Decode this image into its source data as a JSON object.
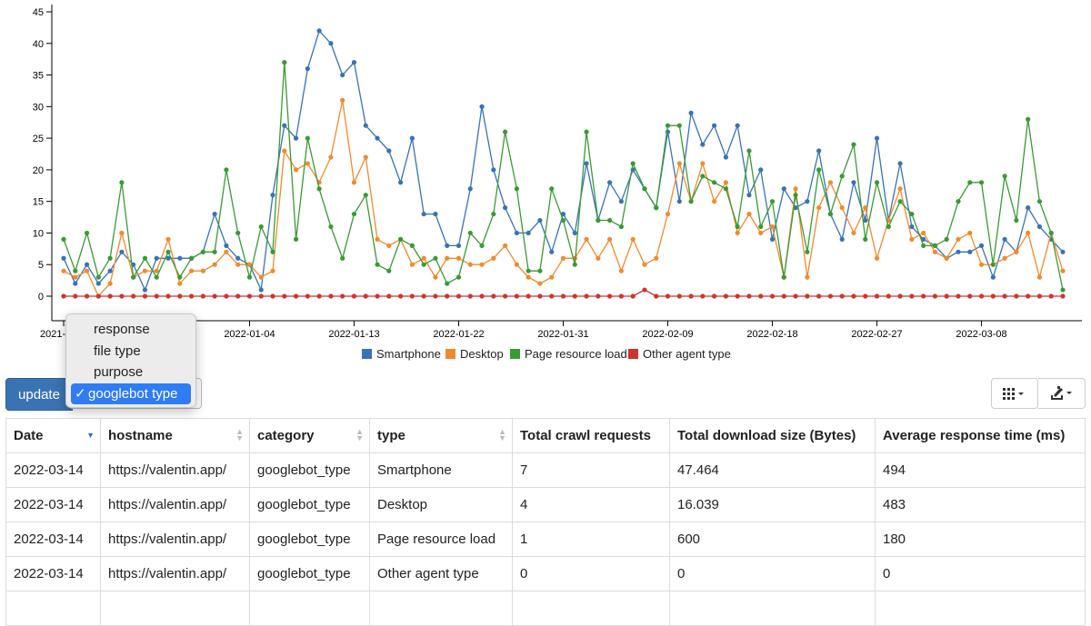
{
  "chart_data": {
    "type": "line",
    "ylim": [
      0,
      45
    ],
    "y_ticks": [
      0,
      5,
      10,
      15,
      20,
      25,
      30,
      35,
      40,
      45
    ],
    "x_tick_labels": [
      "2021-1",
      "2022-01-04",
      "2022-01-13",
      "2022-01-22",
      "2022-01-31",
      "2022-02-09",
      "2022-02-18",
      "2022-02-27",
      "2022-03-08"
    ],
    "legend_position": "bottom",
    "colors": {
      "Smartphone": "#3872b8",
      "Desktop": "#f28a2c",
      "Page resource load": "#3a9a35",
      "Other agent type": "#cf3330"
    },
    "series": [
      {
        "name": "Smartphone",
        "values": [
          6,
          2,
          5,
          2,
          4,
          7,
          5,
          1,
          6,
          6,
          6,
          6,
          7,
          13,
          8,
          6,
          5,
          1,
          16,
          27,
          25,
          36,
          42,
          40,
          35,
          37,
          27,
          25,
          23,
          18,
          25,
          13,
          13,
          8,
          8,
          17,
          30,
          20,
          14,
          10,
          10,
          12,
          7,
          13,
          10,
          21,
          12,
          18,
          15,
          20,
          17,
          14,
          26,
          15,
          29,
          24,
          27,
          22,
          27,
          16,
          20,
          9,
          17,
          14,
          15,
          23,
          13,
          9,
          18,
          12,
          25,
          12,
          21,
          11,
          9,
          8,
          6,
          7,
          7,
          8,
          3,
          9,
          7,
          14,
          11,
          9,
          7
        ]
      },
      {
        "name": "Desktop",
        "values": [
          4,
          3,
          4,
          0,
          2,
          10,
          3,
          4,
          4,
          9,
          2,
          4,
          4,
          5,
          7,
          5,
          5,
          3,
          4,
          23,
          20,
          21,
          18,
          22,
          31,
          18,
          22,
          9,
          8,
          9,
          5,
          6,
          3,
          6,
          6,
          5,
          5,
          6,
          8,
          5,
          3,
          2,
          3,
          6,
          6,
          9,
          6,
          9,
          4,
          9,
          5,
          6,
          13,
          21,
          15,
          21,
          15,
          18,
          10,
          13,
          10,
          11,
          3,
          17,
          3,
          14,
          18,
          14,
          10,
          14,
          6,
          12,
          17,
          9,
          10,
          7,
          6,
          9,
          10,
          5,
          5,
          6,
          7,
          10,
          3,
          10,
          4
        ]
      },
      {
        "name": "Page resource load",
        "values": [
          9,
          4,
          10,
          3,
          6,
          18,
          3,
          6,
          3,
          7,
          3,
          6,
          7,
          7,
          20,
          10,
          3,
          11,
          7,
          37,
          9,
          25,
          17,
          11,
          6,
          13,
          16,
          5,
          4,
          9,
          8,
          5,
          6,
          2,
          3,
          10,
          8,
          13,
          26,
          17,
          4,
          4,
          17,
          12,
          5,
          26,
          12,
          12,
          11,
          21,
          17,
          14,
          27,
          27,
          15,
          19,
          18,
          17,
          11,
          23,
          11,
          15,
          3,
          16,
          7,
          20,
          13,
          19,
          24,
          9,
          18,
          11,
          15,
          13,
          8,
          8,
          9,
          15,
          18,
          18,
          5,
          19,
          12,
          28,
          15,
          10,
          1
        ]
      },
      {
        "name": "Other agent type",
        "values": [
          0,
          0,
          0,
          0,
          0,
          0,
          0,
          0,
          0,
          0,
          0,
          0,
          0,
          0,
          0,
          0,
          0,
          0,
          0,
          0,
          0,
          0,
          0,
          0,
          0,
          0,
          0,
          0,
          0,
          0,
          0,
          0,
          0,
          0,
          0,
          0,
          0,
          0,
          0,
          0,
          0,
          0,
          0,
          0,
          0,
          0,
          0,
          0,
          0,
          0,
          1,
          0,
          0,
          0,
          0,
          0,
          0,
          0,
          0,
          0,
          0,
          0,
          0,
          0,
          0,
          0,
          0,
          0,
          0,
          0,
          0,
          0,
          0,
          0,
          0,
          0,
          0,
          0,
          0,
          0,
          0,
          0,
          0,
          0,
          0,
          0,
          0
        ]
      }
    ]
  },
  "toolbar": {
    "update_label": "update",
    "dropdown_options": [
      "response",
      "file type",
      "purpose",
      "googlebot type"
    ],
    "dropdown_selected": "googlebot type",
    "check_mark": "✓",
    "columns_icon": "columns-grid-icon",
    "export_icon": "export-icon"
  },
  "table": {
    "headers": [
      "Date",
      "hostname",
      "category",
      "type",
      "Total crawl requests",
      "Total download size (Bytes)",
      "Average response time (ms)"
    ],
    "rows": [
      [
        "2022-03-14",
        "https://valentin.app/",
        "googlebot_type",
        "Smartphone",
        "7",
        "47.464",
        "494"
      ],
      [
        "2022-03-14",
        "https://valentin.app/",
        "googlebot_type",
        "Desktop",
        "4",
        "16.039",
        "483"
      ],
      [
        "2022-03-14",
        "https://valentin.app/",
        "googlebot_type",
        "Page resource load",
        "1",
        "600",
        "180"
      ],
      [
        "2022-03-14",
        "https://valentin.app/",
        "googlebot_type",
        "Other agent type",
        "0",
        "0",
        "0"
      ]
    ]
  }
}
